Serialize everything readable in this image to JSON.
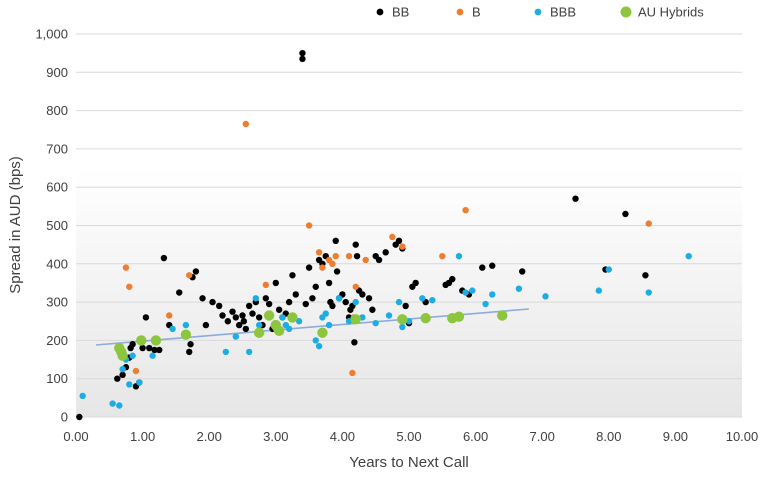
{
  "chart_data": {
    "type": "scatter",
    "title": "",
    "xlabel": "Years to Next Call",
    "ylabel": "Spread in AUD (bps)",
    "xlim": [
      0,
      10
    ],
    "ylim": [
      0,
      1000
    ],
    "x_ticks": [
      "0.00",
      "1.00",
      "2.00",
      "3.00",
      "4.00",
      "5.00",
      "6.00",
      "7.00",
      "8.00",
      "9.00",
      "10.00"
    ],
    "y_ticks": [
      "0",
      "100",
      "200",
      "300",
      "400",
      "500",
      "600",
      "700",
      "800",
      "900",
      "1,000"
    ],
    "grid": "horizontal",
    "legend_position": "top-right",
    "series": [
      {
        "name": "BB",
        "color": "#000000",
        "points": [
          [
            0.05,
            0
          ],
          [
            0.62,
            100
          ],
          [
            0.7,
            110
          ],
          [
            0.75,
            130
          ],
          [
            0.8,
            155
          ],
          [
            0.82,
            180
          ],
          [
            0.85,
            190
          ],
          [
            0.9,
            80
          ],
          [
            0.95,
            90
          ],
          [
            1.0,
            180
          ],
          [
            1.05,
            260
          ],
          [
            1.1,
            180
          ],
          [
            1.18,
            175
          ],
          [
            1.25,
            175
          ],
          [
            1.32,
            415
          ],
          [
            1.4,
            240
          ],
          [
            1.55,
            325
          ],
          [
            1.7,
            170
          ],
          [
            1.72,
            190
          ],
          [
            1.75,
            365
          ],
          [
            1.8,
            380
          ],
          [
            1.9,
            310
          ],
          [
            1.95,
            240
          ],
          [
            2.05,
            300
          ],
          [
            2.15,
            290
          ],
          [
            2.2,
            265
          ],
          [
            2.28,
            250
          ],
          [
            2.35,
            275
          ],
          [
            2.4,
            260
          ],
          [
            2.45,
            240
          ],
          [
            2.5,
            265
          ],
          [
            2.52,
            250
          ],
          [
            2.55,
            230
          ],
          [
            2.6,
            290
          ],
          [
            2.65,
            270
          ],
          [
            2.7,
            300
          ],
          [
            2.75,
            260
          ],
          [
            2.8,
            240
          ],
          [
            2.85,
            310
          ],
          [
            2.9,
            295
          ],
          [
            2.95,
            230
          ],
          [
            3.0,
            350
          ],
          [
            3.05,
            280
          ],
          [
            3.1,
            260
          ],
          [
            3.15,
            270
          ],
          [
            3.2,
            300
          ],
          [
            3.25,
            370
          ],
          [
            3.3,
            320
          ],
          [
            3.4,
            950
          ],
          [
            3.4,
            935
          ],
          [
            3.45,
            295
          ],
          [
            3.5,
            390
          ],
          [
            3.55,
            310
          ],
          [
            3.6,
            340
          ],
          [
            3.65,
            410
          ],
          [
            3.7,
            400
          ],
          [
            3.75,
            420
          ],
          [
            3.8,
            350
          ],
          [
            3.82,
            300
          ],
          [
            3.85,
            290
          ],
          [
            3.9,
            460
          ],
          [
            3.92,
            380
          ],
          [
            3.95,
            310
          ],
          [
            4.0,
            320
          ],
          [
            4.05,
            300
          ],
          [
            4.1,
            260
          ],
          [
            4.12,
            280
          ],
          [
            4.15,
            290
          ],
          [
            4.18,
            195
          ],
          [
            4.2,
            450
          ],
          [
            4.22,
            420
          ],
          [
            4.25,
            330
          ],
          [
            4.3,
            320
          ],
          [
            4.4,
            310
          ],
          [
            4.45,
            280
          ],
          [
            4.5,
            420
          ],
          [
            4.55,
            410
          ],
          [
            4.65,
            430
          ],
          [
            4.8,
            450
          ],
          [
            4.85,
            460
          ],
          [
            4.9,
            440
          ],
          [
            4.95,
            290
          ],
          [
            5.0,
            245
          ],
          [
            5.05,
            340
          ],
          [
            5.1,
            350
          ],
          [
            5.25,
            300
          ],
          [
            5.55,
            345
          ],
          [
            5.6,
            350
          ],
          [
            5.65,
            360
          ],
          [
            5.8,
            330
          ],
          [
            5.9,
            320
          ],
          [
            6.1,
            390
          ],
          [
            6.25,
            395
          ],
          [
            6.7,
            380
          ],
          [
            7.5,
            570
          ],
          [
            7.95,
            385
          ],
          [
            8.25,
            530
          ],
          [
            8.55,
            370
          ]
        ]
      },
      {
        "name": "B",
        "color": "#ed7d31",
        "points": [
          [
            0.75,
            390
          ],
          [
            0.8,
            340
          ],
          [
            0.9,
            120
          ],
          [
            1.4,
            265
          ],
          [
            1.7,
            370
          ],
          [
            2.55,
            765
          ],
          [
            2.85,
            345
          ],
          [
            3.5,
            500
          ],
          [
            3.65,
            430
          ],
          [
            3.7,
            390
          ],
          [
            3.8,
            410
          ],
          [
            3.85,
            400
          ],
          [
            3.9,
            420
          ],
          [
            4.1,
            420
          ],
          [
            4.15,
            115
          ],
          [
            4.17,
            260
          ],
          [
            4.2,
            340
          ],
          [
            4.35,
            410
          ],
          [
            4.75,
            470
          ],
          [
            4.9,
            445
          ],
          [
            5.5,
            420
          ],
          [
            5.85,
            540
          ],
          [
            8.6,
            505
          ]
        ]
      },
      {
        "name": "BBB",
        "color": "#1cade4",
        "points": [
          [
            0.1,
            55
          ],
          [
            0.55,
            35
          ],
          [
            0.65,
            30
          ],
          [
            0.7,
            125
          ],
          [
            0.75,
            150
          ],
          [
            0.8,
            85
          ],
          [
            0.85,
            160
          ],
          [
            0.95,
            90
          ],
          [
            1.15,
            160
          ],
          [
            1.45,
            230
          ],
          [
            1.65,
            240
          ],
          [
            2.25,
            170
          ],
          [
            2.4,
            210
          ],
          [
            2.6,
            170
          ],
          [
            2.7,
            310
          ],
          [
            2.75,
            240
          ],
          [
            3.0,
            230
          ],
          [
            3.1,
            260
          ],
          [
            3.15,
            240
          ],
          [
            3.2,
            230
          ],
          [
            3.35,
            250
          ],
          [
            3.6,
            200
          ],
          [
            3.65,
            185
          ],
          [
            3.7,
            260
          ],
          [
            3.75,
            270
          ],
          [
            3.8,
            240
          ],
          [
            3.95,
            310
          ],
          [
            4.1,
            250
          ],
          [
            4.2,
            300
          ],
          [
            4.3,
            260
          ],
          [
            4.5,
            245
          ],
          [
            4.7,
            265
          ],
          [
            4.85,
            300
          ],
          [
            4.9,
            235
          ],
          [
            5.0,
            250
          ],
          [
            5.2,
            310
          ],
          [
            5.35,
            305
          ],
          [
            5.75,
            420
          ],
          [
            5.85,
            325
          ],
          [
            5.95,
            330
          ],
          [
            6.15,
            295
          ],
          [
            6.25,
            320
          ],
          [
            6.65,
            335
          ],
          [
            7.05,
            315
          ],
          [
            7.85,
            330
          ],
          [
            8.0,
            385
          ],
          [
            8.6,
            325
          ],
          [
            9.2,
            420
          ]
        ]
      },
      {
        "name": "AU Hybrids",
        "color": "#8cc63f",
        "points": [
          [
            0.65,
            180
          ],
          [
            0.68,
            170
          ],
          [
            0.7,
            160
          ],
          [
            0.98,
            200
          ],
          [
            1.2,
            200
          ],
          [
            1.65,
            215
          ],
          [
            2.75,
            220
          ],
          [
            2.9,
            265
          ],
          [
            3.0,
            240
          ],
          [
            3.05,
            225
          ],
          [
            3.25,
            260
          ],
          [
            3.7,
            220
          ],
          [
            4.2,
            255
          ],
          [
            4.9,
            255
          ],
          [
            5.25,
            258
          ],
          [
            5.65,
            258
          ],
          [
            5.75,
            262
          ],
          [
            6.4,
            265
          ]
        ]
      }
    ],
    "trendline": {
      "color": "#8faadc",
      "x": [
        0.3,
        6.8
      ],
      "y": [
        188,
        282
      ]
    }
  }
}
